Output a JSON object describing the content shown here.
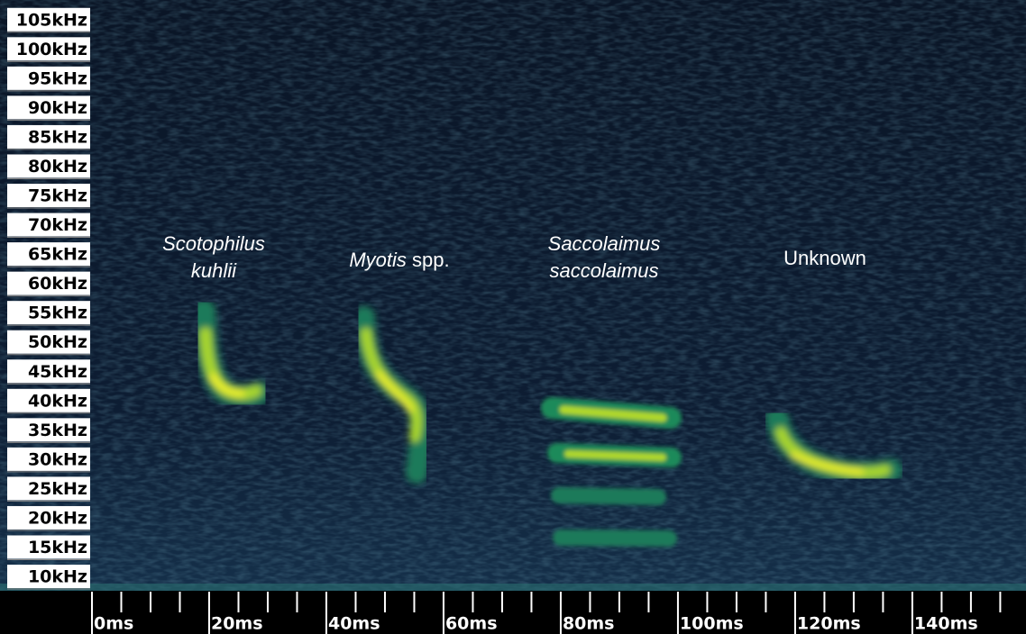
{
  "chart_data": {
    "type": "spectrogram",
    "xlim": [
      0,
      159.4
    ],
    "xticks": [
      {
        "value": 0,
        "label": "0ms"
      },
      {
        "value": 20,
        "label": "20ms"
      },
      {
        "value": 40,
        "label": "40ms"
      },
      {
        "value": 60,
        "label": "60ms"
      },
      {
        "value": 80,
        "label": "80ms"
      },
      {
        "value": 100,
        "label": "100ms"
      },
      {
        "value": 120,
        "label": "120ms"
      },
      {
        "value": 140,
        "label": "140ms"
      }
    ],
    "xminorticks": [
      5,
      10,
      15,
      25,
      30,
      35,
      45,
      50,
      55,
      65,
      70,
      75,
      85,
      90,
      95,
      105,
      110,
      115,
      125,
      130,
      135,
      145,
      150,
      155
    ],
    "ylim": [
      7.7,
      108.5
    ],
    "yticks": [
      {
        "value": 10,
        "label": "10kHz"
      },
      {
        "value": 15,
        "label": "15kHz"
      },
      {
        "value": 20,
        "label": "20kHz"
      },
      {
        "value": 25,
        "label": "25kHz"
      },
      {
        "value": 30,
        "label": "30kHz"
      },
      {
        "value": 35,
        "label": "35kHz"
      },
      {
        "value": 40,
        "label": "40kHz"
      },
      {
        "value": 45,
        "label": "45kHz"
      },
      {
        "value": 50,
        "label": "50kHz"
      },
      {
        "value": 55,
        "label": "55kHz"
      },
      {
        "value": 60,
        "label": "60kHz"
      },
      {
        "value": 65,
        "label": "65kHz"
      },
      {
        "value": 70,
        "label": "70kHz"
      },
      {
        "value": 75,
        "label": "75kHz"
      },
      {
        "value": 80,
        "label": "80kHz"
      },
      {
        "value": 85,
        "label": "85kHz"
      },
      {
        "value": 90,
        "label": "90kHz"
      },
      {
        "value": 95,
        "label": "95kHz"
      },
      {
        "value": 100,
        "label": "100kHz"
      },
      {
        "value": 105,
        "label": "105kHz"
      }
    ],
    "annotations": [
      {
        "lines": [
          [
            {
              "text": "Scotophilus",
              "italic": true
            }
          ],
          [
            {
              "text": "kuhlii",
              "italic": true
            }
          ]
        ]
      },
      {
        "lines": [
          [
            {
              "text": "Myotis",
              "italic": true
            },
            {
              "text": " spp.",
              "italic": false
            }
          ]
        ]
      },
      {
        "lines": [
          [
            {
              "text": "Saccolaimus",
              "italic": true
            }
          ],
          [
            {
              "text": "saccolaimus",
              "italic": true
            }
          ]
        ]
      },
      {
        "lines": [
          [
            {
              "text": "Unknown",
              "italic": false
            }
          ]
        ]
      }
    ]
  }
}
